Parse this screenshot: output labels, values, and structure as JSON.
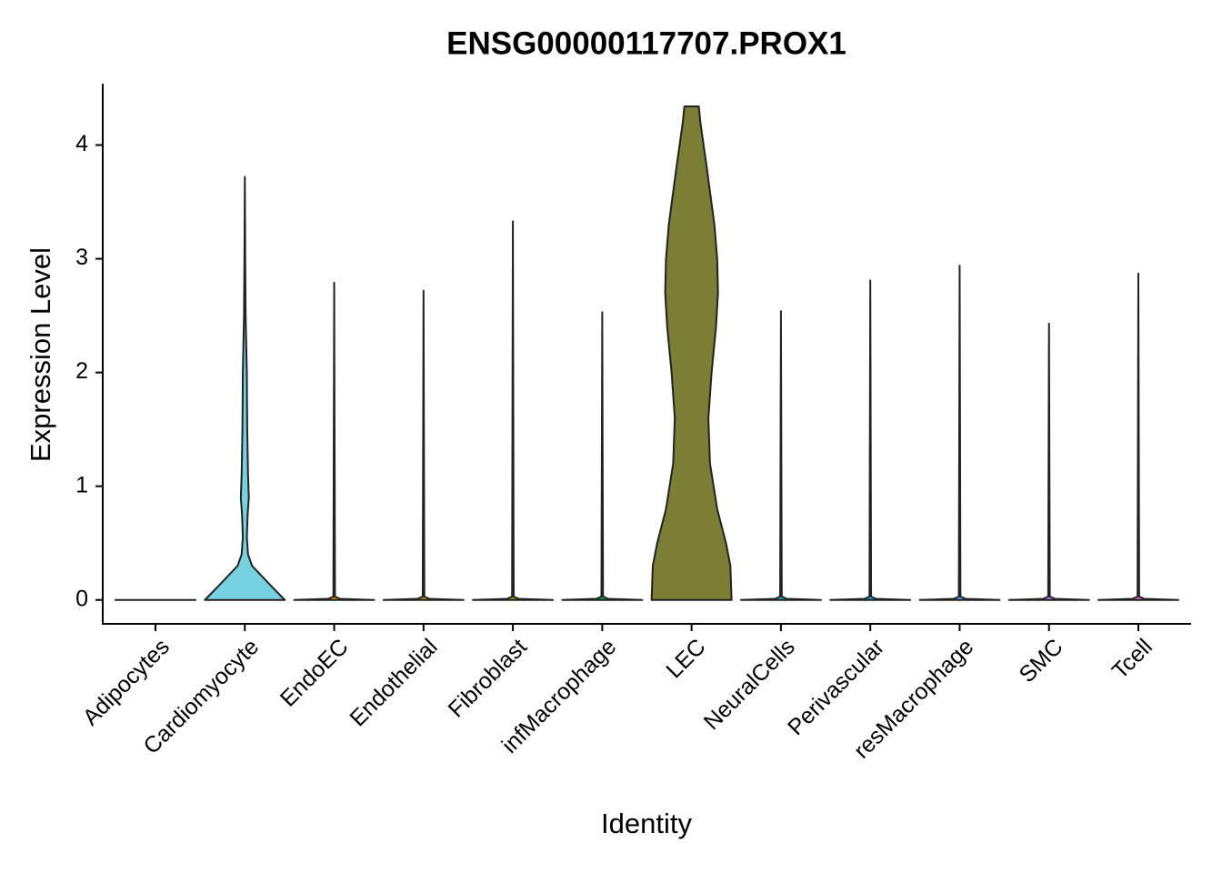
{
  "chart_data": {
    "type": "violin",
    "title": "ENSG00000117707.PROX1",
    "x_label": "Identity",
    "y_label": "Expression Level",
    "categories": [
      "Adipocytes",
      "Cardiomyocyte",
      "EndoEC",
      "Endothelial",
      "Fibroblast",
      "infMacrophage",
      "LEC",
      "NeuralCells",
      "Perivascular",
      "resMacrophage",
      "SMC",
      "Tcell"
    ],
    "violins": [
      {
        "color": "#F8766D",
        "y": [
          0
        ],
        "density": [
          1
        ]
      },
      {
        "color": "#76D1E0",
        "y": [
          0,
          0.1,
          0.2,
          0.3,
          0.4,
          0.55,
          0.75,
          0.9,
          1.1,
          1.5,
          2.0,
          2.5,
          3.0,
          3.72
        ],
        "density": [
          1,
          0.72,
          0.45,
          0.18,
          0.08,
          0.05,
          0.07,
          0.1,
          0.08,
          0.06,
          0.05,
          0.02,
          0.01,
          0
        ]
      },
      {
        "color": "#DE8C00",
        "y": [
          0,
          0.01,
          0.03,
          2.79
        ],
        "density": [
          1,
          0.15,
          0.02,
          0
        ]
      },
      {
        "color": "#B79F00",
        "y": [
          0,
          0.01,
          0.03,
          2.72
        ],
        "density": [
          1,
          0.15,
          0.02,
          0
        ]
      },
      {
        "color": "#7CAE00",
        "y": [
          0,
          0.01,
          0.03,
          3.33
        ],
        "density": [
          1,
          0.15,
          0.02,
          0
        ]
      },
      {
        "color": "#00BA38",
        "y": [
          0,
          0.01,
          0.03,
          2.53
        ],
        "density": [
          1,
          0.15,
          0.02,
          0
        ]
      },
      {
        "color": "#7A7F35",
        "y": [
          0,
          0.3,
          0.5,
          0.8,
          1.2,
          1.6,
          2.0,
          2.4,
          2.7,
          3.0,
          3.3,
          3.8,
          4.2,
          4.34
        ],
        "density": [
          1,
          0.97,
          0.86,
          0.64,
          0.46,
          0.42,
          0.5,
          0.61,
          0.66,
          0.64,
          0.57,
          0.38,
          0.22,
          0.18
        ]
      },
      {
        "color": "#00BFC4",
        "y": [
          0,
          0.01,
          0.03,
          2.54
        ],
        "density": [
          1,
          0.15,
          0.02,
          0
        ]
      },
      {
        "color": "#00B4F0",
        "y": [
          0,
          0.01,
          0.03,
          2.81
        ],
        "density": [
          1,
          0.15,
          0.02,
          0
        ]
      },
      {
        "color": "#619CFF",
        "y": [
          0,
          0.01,
          0.03,
          2.94
        ],
        "density": [
          1,
          0.15,
          0.02,
          0
        ]
      },
      {
        "color": "#C77CFF",
        "y": [
          0,
          0.01,
          0.03,
          2.43
        ],
        "density": [
          1,
          0.15,
          0.02,
          0
        ]
      },
      {
        "color": "#F564E3",
        "y": [
          0,
          0.01,
          0.03,
          2.87
        ],
        "density": [
          1,
          0.15,
          0.02,
          0
        ]
      }
    ],
    "ylim": [
      -0.21,
      4.54
    ],
    "yticks": [
      0,
      1,
      2,
      3,
      4
    ]
  }
}
